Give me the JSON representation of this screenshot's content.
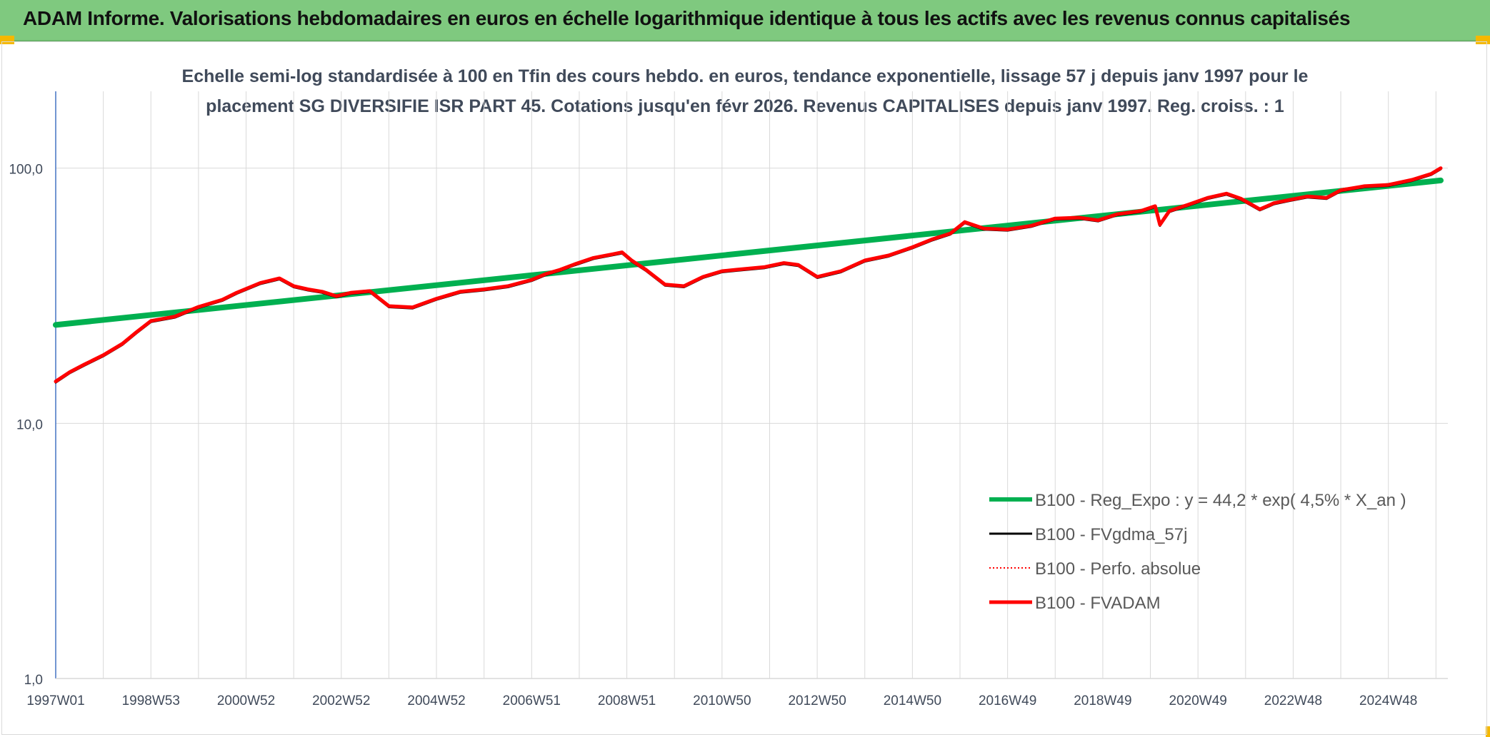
{
  "banner": {
    "title": "ADAM Informe. Valorisations hebdomadaires en euros en échelle logarithmique identique à tous les actifs avec les revenus connus capitalisés"
  },
  "colors": {
    "banner_bg": "#7fc97f",
    "regression": "#00b050",
    "smoothed": "#000000",
    "absolute": "#ff0000",
    "fvadam": "#ff0000",
    "grid": "#d9d9d9",
    "axis": "#4472c4",
    "corner_marker": "#f5b800"
  },
  "chart_data": {
    "type": "line",
    "title_line1": "Echelle semi-log standardisée à 100 en Tfin des cours hebdo. en euros, tendance exponentielle, lissage 57 j depuis janv 1997 pour le",
    "title_line2": "placement SG DIVERSIFIE ISR PART 45. Cotations jusqu'en févr 2026. Revenus CAPITALISES depuis janv 1997. Reg. croiss. : 1",
    "y_scale": "log",
    "ylim": [
      1,
      200
    ],
    "y_ticks": [
      1,
      10,
      100
    ],
    "y_tick_labels": [
      "1,0",
      "10,0",
      "100,0"
    ],
    "xlim": [
      1997.0,
      2026.25
    ],
    "x_tick_labels": [
      "1997W01",
      "1998W53",
      "2000W52",
      "2002W52",
      "2004W52",
      "2006W51",
      "2008W51",
      "2010W50",
      "2012W50",
      "2014W50",
      "2016W49",
      "2018W49",
      "2020W49",
      "2022W48",
      "2024W48"
    ],
    "x_tick_positions": [
      1997,
      1999,
      2001,
      2003,
      2005,
      2007,
      2009,
      2011,
      2013,
      2015,
      2017,
      2019,
      2021,
      2023,
      2025
    ],
    "grid": true,
    "legend_position": "bottom-right",
    "series": [
      {
        "name": "B100 - Reg_Expo : y = 44,2 * exp( 4,5% *  X_an )",
        "style": "thick-solid",
        "x": [
          1997.0,
          2026.1
        ],
        "values": [
          24.3,
          89.5
        ]
      },
      {
        "name": "B100 - FVgdma_57j",
        "style": "thin-solid",
        "x": [
          1997.0,
          1997.3,
          1997.6,
          1998.0,
          1998.4,
          1998.7,
          1999.0,
          1999.5,
          2000.0,
          2000.5,
          2000.8,
          2001.3,
          2001.7,
          2002.0,
          2002.3,
          2002.6,
          2002.9,
          2003.2,
          2003.6,
          2004.0,
          2004.5,
          2005.0,
          2005.5,
          2006.0,
          2006.5,
          2007.0,
          2007.3,
          2007.6,
          2007.9,
          2008.3,
          2008.7,
          2008.9,
          2009.1,
          2009.4,
          2009.8,
          2010.2,
          2010.6,
          2011.0,
          2011.3,
          2011.6,
          2011.9,
          2012.3,
          2012.6,
          2013.0,
          2013.5,
          2014.0,
          2014.5,
          2015.0,
          2015.4,
          2015.8,
          2016.1,
          2016.5,
          2017.0,
          2017.5,
          2018.0,
          2018.5,
          2018.9,
          2019.3,
          2019.8,
          2020.1,
          2020.2,
          2020.4,
          2020.8,
          2021.2,
          2021.6,
          2021.9,
          2022.3,
          2022.6,
          2022.9,
          2023.3,
          2023.7,
          2024.0,
          2024.5,
          2025.0,
          2025.5,
          2025.9,
          2026.1
        ],
        "values": [
          14.6,
          15.9,
          17.0,
          18.5,
          20.5,
          22.8,
          25.2,
          26.2,
          28.6,
          30.5,
          32.5,
          35.5,
          37.0,
          34.5,
          33.5,
          32.8,
          31.5,
          32.5,
          33.0,
          28.8,
          28.5,
          30.8,
          32.8,
          33.5,
          34.5,
          36.5,
          38.5,
          40.0,
          42.0,
          44.5,
          46.0,
          46.8,
          43.5,
          40.0,
          35.0,
          34.5,
          37.5,
          39.5,
          40.0,
          40.5,
          41.0,
          42.5,
          41.8,
          37.5,
          39.5,
          43.5,
          45.5,
          49.0,
          52.5,
          55.5,
          61.5,
          58.0,
          57.5,
          59.5,
          63.5,
          64.0,
          62.5,
          66.0,
          68.0,
          71.0,
          60.0,
          68.0,
          72.0,
          76.5,
          79.5,
          76.0,
          69.0,
          73.0,
          75.0,
          77.5,
          76.5,
          82.0,
          85.0,
          86.0,
          90.0,
          95.0,
          100.0
        ]
      },
      {
        "name": "B100 - Perfo. absolue",
        "style": "thin-dotted",
        "x": [
          1997.0,
          1997.3,
          1997.6,
          1998.0,
          1998.4,
          1998.7,
          1999.0,
          1999.5,
          2000.0,
          2000.5,
          2000.8,
          2001.3,
          2001.7,
          2002.0,
          2002.3,
          2002.6,
          2002.9,
          2003.2,
          2003.6,
          2004.0,
          2004.5,
          2005.0,
          2005.5,
          2006.0,
          2006.5,
          2007.0,
          2007.3,
          2007.6,
          2007.9,
          2008.3,
          2008.7,
          2008.9,
          2009.1,
          2009.4,
          2009.8,
          2010.2,
          2010.6,
          2011.0,
          2011.3,
          2011.6,
          2011.9,
          2012.3,
          2012.6,
          2013.0,
          2013.5,
          2014.0,
          2014.5,
          2015.0,
          2015.4,
          2015.8,
          2016.1,
          2016.5,
          2017.0,
          2017.5,
          2018.0,
          2018.5,
          2018.9,
          2019.3,
          2019.8,
          2020.1,
          2020.2,
          2020.4,
          2020.8,
          2021.2,
          2021.6,
          2021.9,
          2022.3,
          2022.6,
          2022.9,
          2023.3,
          2023.7,
          2024.0,
          2024.5,
          2025.0,
          2025.5,
          2025.9,
          2026.1
        ],
        "values": [
          14.6,
          15.9,
          17.0,
          18.5,
          20.5,
          22.8,
          25.2,
          26.2,
          28.6,
          30.5,
          32.5,
          35.5,
          37.0,
          34.5,
          33.5,
          32.8,
          31.5,
          32.5,
          33.0,
          28.8,
          28.5,
          30.8,
          32.8,
          33.5,
          34.5,
          36.5,
          38.5,
          40.0,
          42.0,
          44.5,
          46.0,
          46.8,
          43.5,
          40.0,
          35.0,
          34.5,
          37.5,
          39.5,
          40.0,
          40.5,
          41.0,
          42.5,
          41.8,
          37.5,
          39.5,
          43.5,
          45.5,
          49.0,
          52.5,
          55.5,
          61.5,
          58.0,
          57.5,
          59.5,
          63.5,
          64.0,
          62.5,
          66.0,
          68.0,
          71.0,
          60.0,
          68.0,
          72.0,
          76.5,
          79.5,
          76.0,
          69.0,
          73.0,
          75.0,
          77.5,
          76.5,
          82.0,
          85.0,
          86.0,
          90.0,
          95.0,
          100.0
        ]
      },
      {
        "name": "B100 - FVADAM",
        "style": "thick-solid",
        "x": [
          1997.0,
          1997.3,
          1997.6,
          1998.0,
          1998.4,
          1998.7,
          1999.0,
          1999.5,
          2000.0,
          2000.5,
          2000.8,
          2001.3,
          2001.7,
          2002.0,
          2002.3,
          2002.6,
          2002.9,
          2003.2,
          2003.6,
          2004.0,
          2004.5,
          2005.0,
          2005.5,
          2006.0,
          2006.5,
          2007.0,
          2007.3,
          2007.6,
          2007.9,
          2008.3,
          2008.7,
          2008.9,
          2009.1,
          2009.4,
          2009.8,
          2010.2,
          2010.6,
          2011.0,
          2011.3,
          2011.6,
          2011.9,
          2012.3,
          2012.6,
          2013.0,
          2013.5,
          2014.0,
          2014.5,
          2015.0,
          2015.4,
          2015.8,
          2016.1,
          2016.5,
          2017.0,
          2017.5,
          2018.0,
          2018.5,
          2018.9,
          2019.3,
          2019.8,
          2020.1,
          2020.2,
          2020.4,
          2020.8,
          2021.2,
          2021.6,
          2021.9,
          2022.3,
          2022.6,
          2022.9,
          2023.3,
          2023.7,
          2024.0,
          2024.5,
          2025.0,
          2025.5,
          2025.9,
          2026.1
        ],
        "values": [
          14.6,
          15.9,
          17.0,
          18.5,
          20.5,
          22.8,
          25.2,
          26.2,
          28.6,
          30.5,
          32.5,
          35.5,
          37.0,
          34.5,
          33.5,
          32.8,
          31.5,
          32.5,
          33.0,
          28.8,
          28.5,
          30.8,
          32.8,
          33.5,
          34.5,
          36.5,
          38.5,
          40.0,
          42.0,
          44.5,
          46.0,
          46.8,
          43.5,
          40.0,
          35.0,
          34.5,
          37.5,
          39.5,
          40.0,
          40.5,
          41.0,
          42.5,
          41.8,
          37.5,
          39.5,
          43.5,
          45.5,
          49.0,
          52.5,
          55.5,
          61.5,
          58.0,
          57.5,
          59.5,
          63.5,
          64.0,
          62.5,
          66.0,
          68.0,
          71.0,
          60.0,
          68.0,
          72.0,
          76.5,
          79.5,
          76.0,
          69.0,
          73.0,
          75.0,
          77.5,
          76.5,
          82.0,
          85.0,
          86.0,
          90.0,
          95.0,
          100.0
        ]
      }
    ]
  }
}
